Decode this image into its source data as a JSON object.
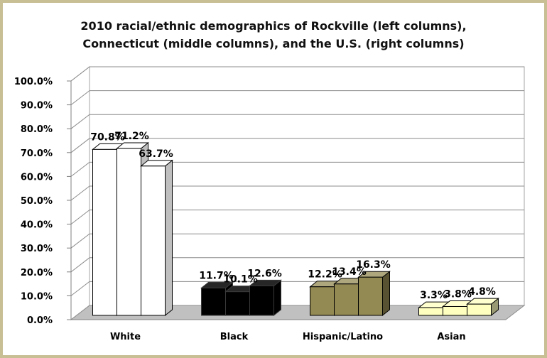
{
  "chart_data": {
    "type": "bar",
    "title_lines": [
      "2010 racial/ethnic demographics of Rockville (left columns),",
      "Connecticut (middle columns), and the U.S. (right columns)"
    ],
    "categories": [
      "White",
      "Black",
      "Hispanic/Latino",
      "Asian"
    ],
    "series": [
      {
        "name": "Rockville",
        "values": [
          70.8,
          11.7,
          12.2,
          3.3
        ]
      },
      {
        "name": "Connecticut",
        "values": [
          71.2,
          10.1,
          13.4,
          3.8
        ]
      },
      {
        "name": "U.S.",
        "values": [
          63.7,
          12.6,
          16.3,
          4.8
        ]
      }
    ],
    "data_labels": [
      [
        "70.8%",
        "71.2%",
        "63.7%"
      ],
      [
        "11.7%",
        "10.1%",
        "12.6%"
      ],
      [
        "12.2%",
        "13.4%",
        "16.3%"
      ],
      [
        "3.3%",
        "3.8%",
        "4.8%"
      ]
    ],
    "category_colors": [
      "#ffffff",
      "#000000",
      "#938953",
      "#ffffc0"
    ],
    "yticks": [
      "0.0%",
      "10.0%",
      "20.0%",
      "30.0%",
      "40.0%",
      "50.0%",
      "60.0%",
      "70.0%",
      "80.0%",
      "90.0%",
      "100.0%"
    ],
    "ylim": [
      0,
      100
    ],
    "grid": true,
    "legend": "none",
    "xlabel": "",
    "ylabel": ""
  }
}
